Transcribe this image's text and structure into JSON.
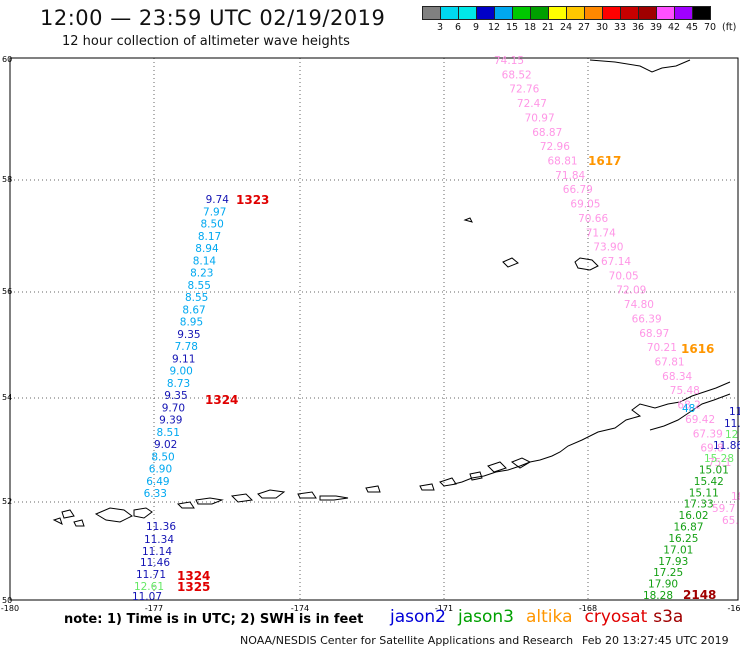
{
  "header": {
    "title": "12:00 — 23:59 UTC 02/19/2019",
    "subtitle": "12 hour collection of altimeter wave heights"
  },
  "scale": {
    "colors": [
      "#808080",
      "#00d8f0",
      "#00e8e8",
      "#0000c8",
      "#00a8f0",
      "#00c800",
      "#00a000",
      "#ffff00",
      "#ffc800",
      "#ff8800",
      "#ff0000",
      "#c80000",
      "#a00000",
      "#ff50ff",
      "#a000ff",
      "#000000"
    ],
    "labels": [
      "3",
      "6",
      "9",
      "12",
      "15",
      "18",
      "21",
      "24",
      "27",
      "30",
      "33",
      "36",
      "39",
      "42",
      "45",
      "70"
    ],
    "unit": "(ft)"
  },
  "axes": {
    "lat_ticks": [
      "60",
      "58",
      "56",
      "54",
      "52",
      "50"
    ],
    "lon_ticks": [
      "-180",
      "-177",
      "-174",
      "-171",
      "-168",
      "-16"
    ]
  },
  "tracks": {
    "jason2_west": {
      "color_light": "#00a8f0",
      "color_dark": "#1414b4",
      "values": [
        "9.74",
        "7.97",
        "8.50",
        "8.17",
        "8.94",
        "8.14",
        "8.23",
        "8.55",
        "8.55",
        "8.67",
        "8.95",
        "9.35",
        "7.78",
        "9.11",
        "9.00",
        "8.73",
        "9.35",
        "9.70",
        "9.39",
        "8.51",
        "9.02",
        "8.50",
        "6.90",
        "6.49",
        "6.33"
      ],
      "time_top": "1323",
      "time_mid": "1324"
    },
    "west_bottom": {
      "values": [
        "11.36",
        "11.34",
        "11.14",
        "11.46",
        "11.71",
        "12.61",
        "11.07"
      ],
      "time_a": "1324",
      "time_b": "1325"
    },
    "cryosat_east": {
      "color": "#ff96e6",
      "values": [
        "74.15",
        "68.52",
        "72.76",
        "72.47",
        "70.97",
        "68.87",
        "72.96",
        "68.81",
        "71.84",
        "66.79",
        "69.05",
        "70.66",
        "71.74",
        "73.90",
        "67.14",
        "70.05",
        "72.09",
        "74.80",
        "66.39",
        "68.97",
        "70.21",
        "67.81",
        "68.34",
        "75.48",
        "68.2",
        "69.42",
        "67.39",
        "69.8",
        "75.1"
      ],
      "time_a": "1617",
      "time_b": "1616"
    },
    "jason3_east": {
      "color": "#14a014",
      "values": [
        "15.28",
        "15.01",
        "15.42",
        "15.11",
        "17.33",
        "16.02",
        "16.87",
        "16.25",
        "17.01",
        "17.93",
        "17.25",
        "17.90",
        "18.28"
      ],
      "time": "2148"
    },
    "edge_labels": [
      "48",
      "11",
      "11.",
      "11.86",
      "12"
    ],
    "right_edge_pink": [
      "59.7",
      "65.",
      "18"
    ]
  },
  "footer": {
    "note": "note: 1) Time is in UTC; 2) SWH is in feet",
    "satellites": [
      {
        "name": "jason2",
        "color": "#0000d8"
      },
      {
        "name": "jason3",
        "color": "#00a000"
      },
      {
        "name": "altika",
        "color": "#ff9600"
      },
      {
        "name": "cryosat",
        "color": "#e00000"
      },
      {
        "name": "s3a",
        "color": "#a00000"
      }
    ],
    "credit": "NOAA/NESDIS Center for Satellite Applications and Research",
    "timestamp": "Feb 20 13:27:45 UTC 2019"
  }
}
